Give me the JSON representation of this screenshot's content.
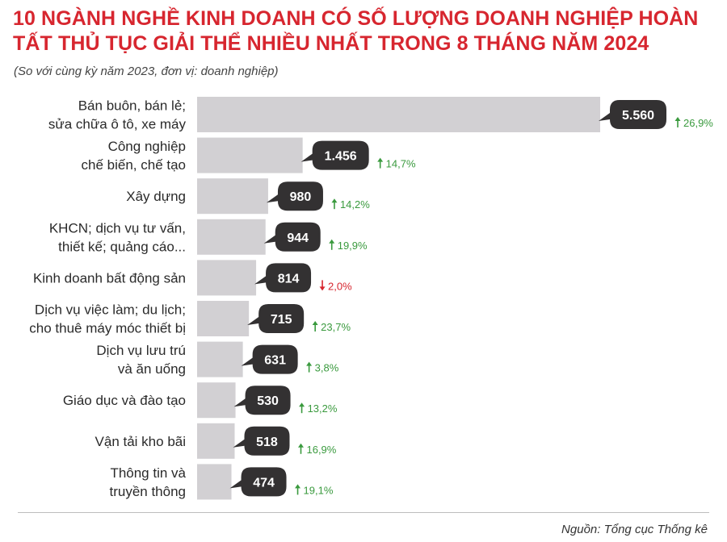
{
  "chart_data": {
    "type": "bar",
    "orientation": "horizontal",
    "title": "10 NGÀNH NGHỀ KINH DOANH CÓ SỐ LƯỢNG DOANH NGHIỆP HOÀN TẤT THỦ TỤC GIẢI THỂ NHIỀU NHẤT TRONG 8 THÁNG NĂM 2024",
    "subtitle": "(So với cùng kỳ năm 2023, đơn vị: doanh nghiệp)",
    "source": "Nguồn: Tổng cục Thống kê",
    "xlim": [
      0,
      5560
    ],
    "grid": false,
    "legend": "none",
    "categories": [
      [
        "Bán buôn, bán lẻ;",
        "sửa chữa ô tô, xe máy"
      ],
      [
        "Công nghiệp",
        "chế biến, chế tạo"
      ],
      [
        "Xây dựng"
      ],
      [
        "KHCN; dịch vụ tư vấn,",
        "thiết kế; quảng cáo..."
      ],
      [
        "Kinh doanh bất động sản"
      ],
      [
        "Dịch vụ việc làm; du lịch;",
        "cho thuê máy móc thiết bị"
      ],
      [
        "Dịch vụ lưu trú",
        "và ăn uống"
      ],
      [
        "Giáo dục và đào tạo"
      ],
      [
        "Vận tải kho bãi"
      ],
      [
        "Thông tin và",
        "truyền thông"
      ]
    ],
    "values": [
      5560,
      1456,
      980,
      944,
      814,
      715,
      631,
      530,
      518,
      474
    ],
    "value_labels": [
      "5.560",
      "1.456",
      "980",
      "944",
      "814",
      "715",
      "631",
      "530",
      "518",
      "474"
    ],
    "changes": [
      "26,9%",
      "14,7%",
      "14,2%",
      "19,9%",
      "2,0%",
      "23,7%",
      "3,8%",
      "13,2%",
      "16,9%",
      "19,1%"
    ],
    "change_direction": [
      "up",
      "up",
      "up",
      "up",
      "down",
      "up",
      "up",
      "up",
      "up",
      "up"
    ],
    "colors": {
      "bar": "#d2d0d3",
      "value_badge": "#333132",
      "up": "#3a9a3e",
      "down": "#d7262f",
      "title": "#d7262f"
    }
  }
}
